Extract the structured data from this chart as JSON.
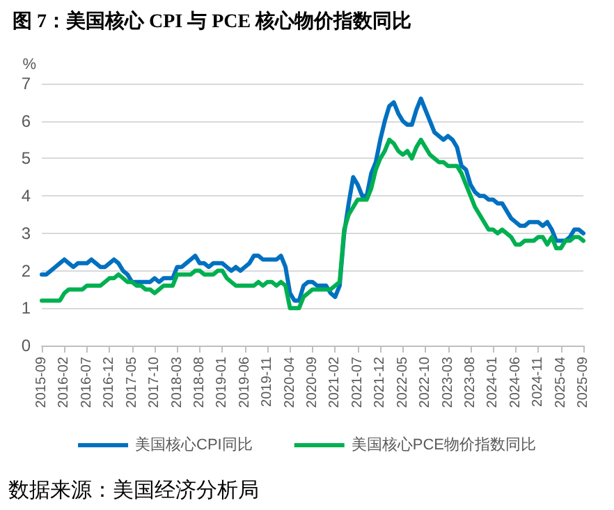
{
  "chart_data": {
    "type": "line",
    "title": "图 7：美国核心 CPI 与 PCE 核心物价指数同比",
    "ylabel": "%",
    "annotations": [
      "数据来源：美国经济分析局"
    ],
    "categories": [
      "2015-09",
      null,
      null,
      null,
      null,
      "2016-02",
      null,
      null,
      null,
      null,
      "2016-07",
      null,
      null,
      null,
      null,
      "2016-12",
      null,
      null,
      null,
      null,
      "2017-05",
      null,
      null,
      null,
      null,
      "2017-10",
      null,
      null,
      null,
      null,
      "2018-03",
      null,
      null,
      null,
      null,
      "2018-08",
      null,
      null,
      null,
      null,
      "2019-01",
      null,
      null,
      null,
      null,
      "2019-06",
      null,
      null,
      null,
      null,
      "2019-11",
      null,
      null,
      null,
      null,
      "2020-04",
      null,
      null,
      null,
      null,
      "2020-09",
      null,
      null,
      null,
      null,
      "2021-02",
      null,
      null,
      null,
      null,
      "2021-07",
      null,
      null,
      null,
      null,
      "2021-12",
      null,
      null,
      null,
      null,
      "2022-05",
      null,
      null,
      null,
      null,
      "2022-10",
      null,
      null,
      null,
      null,
      "2023-03",
      null,
      null,
      null,
      null,
      "2023-08",
      null,
      null,
      null,
      null,
      "2024-01",
      null,
      null,
      null,
      null,
      "2024-06",
      null,
      null,
      null,
      null,
      "2024-11",
      null,
      null,
      null,
      null,
      "2025-04",
      null,
      null,
      null,
      null,
      "2025-09"
    ],
    "series": [
      {
        "name": "美国核心CPI同比",
        "color": "#0070c0",
        "values": [
          1.9,
          1.9,
          2.0,
          2.1,
          2.2,
          2.3,
          2.2,
          2.1,
          2.2,
          2.2,
          2.2,
          2.3,
          2.2,
          2.1,
          2.1,
          2.2,
          2.3,
          2.2,
          2.0,
          1.9,
          1.7,
          1.7,
          1.7,
          1.7,
          1.7,
          1.8,
          1.7,
          1.8,
          1.8,
          1.8,
          2.1,
          2.1,
          2.2,
          2.3,
          2.4,
          2.2,
          2.2,
          2.1,
          2.2,
          2.2,
          2.2,
          2.1,
          2.0,
          2.1,
          2.0,
          2.1,
          2.2,
          2.4,
          2.4,
          2.3,
          2.3,
          2.3,
          2.3,
          2.4,
          2.1,
          1.4,
          1.2,
          1.2,
          1.6,
          1.7,
          1.7,
          1.6,
          1.6,
          1.6,
          1.4,
          1.3,
          1.6,
          3.0,
          3.8,
          4.5,
          4.3,
          4.0,
          4.0,
          4.6,
          4.9,
          5.5,
          6.0,
          6.4,
          6.5,
          6.2,
          6.0,
          5.9,
          5.9,
          6.3,
          6.6,
          6.3,
          6.0,
          5.7,
          5.6,
          5.5,
          5.6,
          5.5,
          5.3,
          4.8,
          4.7,
          4.3,
          4.1,
          4.0,
          4.0,
          3.9,
          3.9,
          3.8,
          3.8,
          3.6,
          3.4,
          3.3,
          3.2,
          3.2,
          3.3,
          3.3,
          3.3,
          3.2,
          3.3,
          3.1,
          2.8,
          2.8,
          2.8,
          2.9,
          3.1,
          3.1,
          3.0
        ]
      },
      {
        "name": "美国核心PCE物价指数同比",
        "color": "#00b050",
        "values": [
          1.2,
          1.2,
          1.2,
          1.2,
          1.2,
          1.4,
          1.5,
          1.5,
          1.5,
          1.5,
          1.6,
          1.6,
          1.6,
          1.6,
          1.7,
          1.8,
          1.8,
          1.9,
          1.8,
          1.7,
          1.7,
          1.6,
          1.6,
          1.5,
          1.5,
          1.4,
          1.5,
          1.6,
          1.6,
          1.6,
          1.9,
          1.9,
          1.9,
          1.9,
          2.0,
          2.0,
          1.9,
          1.9,
          1.9,
          2.0,
          2.0,
          1.8,
          1.7,
          1.6,
          1.6,
          1.6,
          1.6,
          1.6,
          1.7,
          1.6,
          1.7,
          1.7,
          1.6,
          1.7,
          1.6,
          1.0,
          1.0,
          1.0,
          1.3,
          1.4,
          1.5,
          1.5,
          1.5,
          1.5,
          1.5,
          1.6,
          1.7,
          3.1,
          3.5,
          3.7,
          3.9,
          3.9,
          3.9,
          4.2,
          4.7,
          5.0,
          5.2,
          5.5,
          5.4,
          5.2,
          5.1,
          5.2,
          5.0,
          5.3,
          5.5,
          5.3,
          5.1,
          5.0,
          4.9,
          4.9,
          4.8,
          4.8,
          4.8,
          4.6,
          4.3,
          4.0,
          3.7,
          3.5,
          3.3,
          3.1,
          3.1,
          3.0,
          3.1,
          3.0,
          2.9,
          2.7,
          2.7,
          2.8,
          2.8,
          2.8,
          2.9,
          2.9,
          2.7,
          2.9,
          2.6,
          2.6,
          2.8,
          2.8,
          2.9,
          2.9,
          2.8
        ]
      }
    ],
    "ylim": [
      0,
      7
    ],
    "yticks": [
      0,
      1,
      2,
      3,
      4,
      5,
      6,
      7
    ],
    "grid": "y",
    "legend": "bottom",
    "marker": "none",
    "line_style": "solid"
  }
}
